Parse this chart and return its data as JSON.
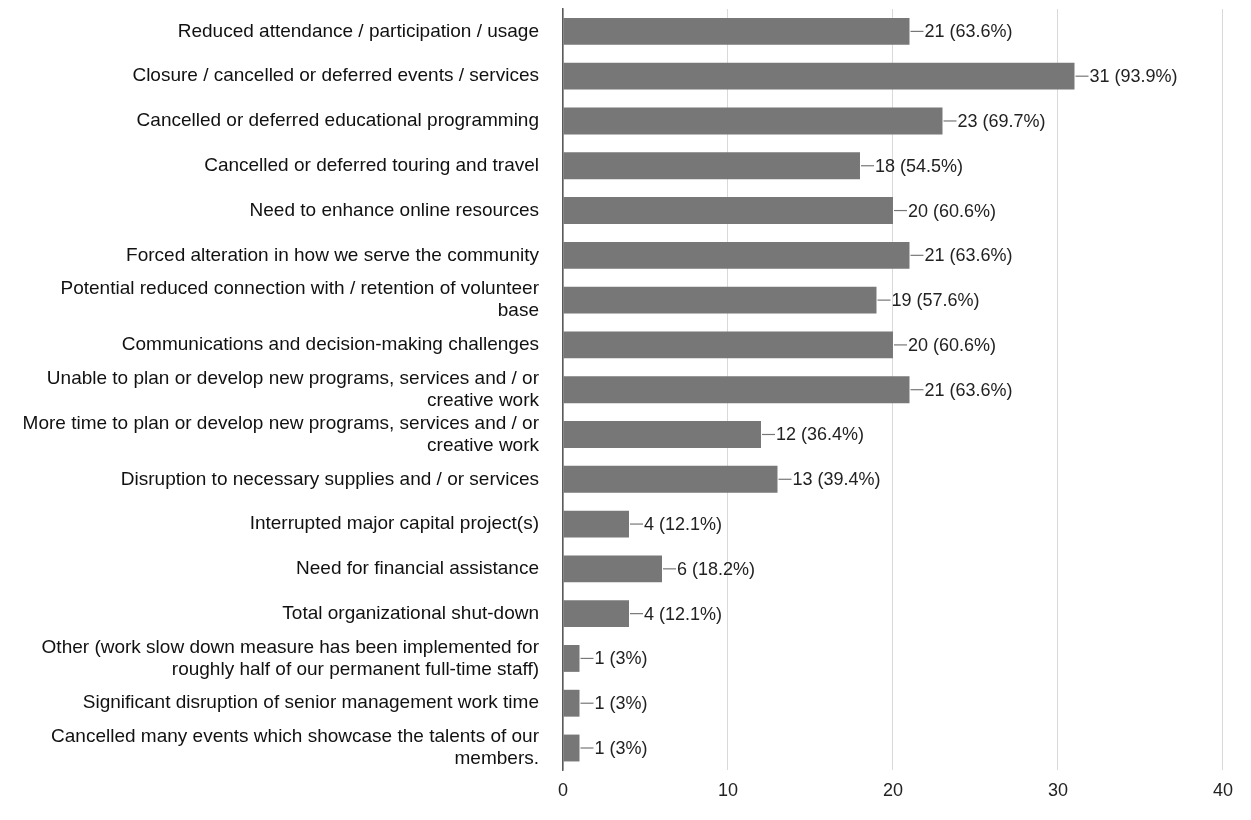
{
  "chart_data": {
    "type": "bar",
    "orientation": "horizontal",
    "categories": [
      "Reduced attendance / participation / usage",
      "Closure / cancelled or deferred events / services",
      "Cancelled or deferred educational programming",
      "Cancelled or deferred touring and travel",
      "Need to enhance online resources",
      "Forced alteration in how we serve the community",
      "Potential reduced connection with / retention of volunteer base",
      "Communications and decision-making challenges",
      "Unable to plan or develop new programs, services and / or creative work",
      "More time to plan or develop new programs, services and / or creative work",
      "Disruption to necessary supplies and / or services",
      "Interrupted major capital project(s)",
      "Need for financial assistance",
      "Total organizational shut-down",
      "Other (work slow down measure has been implemented for roughly half of our permanent full-time staff)",
      "Significant disruption of senior management work time",
      "Cancelled many events which showcase the talents of our members."
    ],
    "values": [
      21,
      31,
      23,
      18,
      20,
      21,
      19,
      20,
      21,
      12,
      13,
      4,
      6,
      4,
      1,
      1,
      1
    ],
    "value_labels": [
      "21 (63.6%)",
      "31 (93.9%)",
      "23 (69.7%)",
      "18 (54.5%)",
      "20 (60.6%)",
      "21 (63.6%)",
      "19 (57.6%)",
      "20 (60.6%)",
      "21 (63.6%)",
      "12 (36.4%)",
      "13 (39.4%)",
      "4 (12.1%)",
      "6 (18.2%)",
      "4 (12.1%)",
      "1 (3%)",
      "1 (3%)",
      "1 (3%)"
    ],
    "color": "#777777",
    "xlim": [
      0,
      40
    ],
    "xticks": [
      0,
      10,
      20,
      30,
      40
    ],
    "grid": "x"
  }
}
